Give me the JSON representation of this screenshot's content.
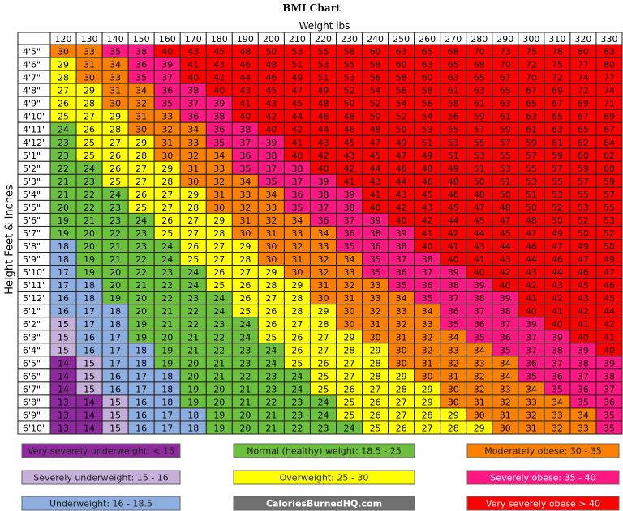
{
  "title": "BMI Chart",
  "x_label": "Weight lbs",
  "y_label": "Height Feet & Inches",
  "table": {
    "columns": [
      120,
      130,
      140,
      150,
      160,
      170,
      180,
      190,
      200,
      210,
      220,
      230,
      240,
      250,
      260,
      270,
      280,
      290,
      300,
      310,
      320,
      330
    ],
    "rows": [
      {
        "label": "4'5\"",
        "values": [
          30,
          33,
          35,
          38,
          40,
          43,
          45,
          48,
          50,
          53,
          55,
          58,
          60,
          63,
          65,
          68,
          70,
          73,
          75,
          78,
          80,
          83
        ]
      },
      {
        "label": "4'6\"",
        "values": [
          29,
          31,
          34,
          36,
          39,
          41,
          43,
          46,
          48,
          51,
          53,
          55,
          58,
          60,
          63,
          65,
          68,
          70,
          72,
          75,
          77,
          80
        ]
      },
      {
        "label": "4'7\"",
        "values": [
          28,
          30,
          33,
          35,
          37,
          40,
          42,
          44,
          46,
          49,
          51,
          53,
          56,
          58,
          60,
          63,
          65,
          67,
          70,
          72,
          74,
          77
        ]
      },
      {
        "label": "4'8\"",
        "values": [
          27,
          29,
          31,
          34,
          36,
          38,
          40,
          43,
          45,
          47,
          49,
          52,
          54,
          56,
          58,
          61,
          63,
          65,
          67,
          69,
          72,
          74
        ]
      },
      {
        "label": "4'9\"",
        "values": [
          26,
          28,
          30,
          32,
          35,
          37,
          39,
          41,
          43,
          45,
          48,
          50,
          52,
          54,
          56,
          58,
          61,
          63,
          65,
          67,
          69,
          71
        ]
      },
      {
        "label": "4'10\"",
        "values": [
          25,
          27,
          29,
          31,
          33,
          36,
          38,
          40,
          42,
          44,
          46,
          48,
          50,
          52,
          54,
          56,
          59,
          61,
          63,
          65,
          67,
          69
        ]
      },
      {
        "label": "4'11\"",
        "values": [
          24,
          26,
          28,
          30,
          32,
          34,
          36,
          38,
          40,
          42,
          44,
          46,
          48,
          50,
          53,
          55,
          57,
          59,
          61,
          63,
          65,
          67
        ]
      },
      {
        "label": "4'12\"",
        "values": [
          23,
          25,
          27,
          29,
          31,
          33,
          35,
          37,
          39,
          41,
          43,
          45,
          47,
          49,
          51,
          53,
          55,
          57,
          59,
          61,
          62,
          64
        ]
      },
      {
        "label": "5'1\"",
        "values": [
          23,
          25,
          26,
          28,
          30,
          32,
          34,
          36,
          38,
          40,
          42,
          43,
          45,
          47,
          49,
          51,
          53,
          55,
          57,
          59,
          60,
          62
        ]
      },
      {
        "label": "5'2\"",
        "values": [
          22,
          24,
          26,
          27,
          29,
          31,
          33,
          35,
          37,
          38,
          40,
          42,
          44,
          46,
          48,
          49,
          51,
          53,
          55,
          57,
          59,
          60
        ]
      },
      {
        "label": "5'3\"",
        "values": [
          21,
          23,
          25,
          27,
          28,
          30,
          32,
          34,
          35,
          37,
          39,
          41,
          43,
          44,
          46,
          48,
          50,
          51,
          53,
          55,
          57,
          59
        ]
      },
      {
        "label": "5'4\"",
        "values": [
          21,
          22,
          24,
          26,
          27,
          29,
          31,
          33,
          34,
          36,
          38,
          39,
          41,
          43,
          45,
          46,
          48,
          50,
          51,
          53,
          55,
          57
        ]
      },
      {
        "label": "5'5\"",
        "values": [
          20,
          22,
          23,
          25,
          27,
          28,
          30,
          32,
          33,
          35,
          37,
          38,
          40,
          42,
          43,
          45,
          47,
          48,
          50,
          52,
          53,
          55
        ]
      },
      {
        "label": "5'6\"",
        "values": [
          19,
          21,
          23,
          24,
          26,
          27,
          29,
          31,
          32,
          34,
          36,
          37,
          39,
          40,
          42,
          44,
          45,
          47,
          48,
          50,
          52,
          53
        ]
      },
      {
        "label": "5'7\"",
        "values": [
          19,
          20,
          22,
          23,
          25,
          27,
          28,
          30,
          31,
          33,
          34,
          36,
          38,
          39,
          41,
          42,
          44,
          45,
          47,
          49,
          50,
          52
        ]
      },
      {
        "label": "5'8\"",
        "values": [
          18,
          20,
          21,
          23,
          24,
          26,
          27,
          29,
          30,
          32,
          33,
          35,
          36,
          38,
          40,
          41,
          43,
          44,
          46,
          47,
          49,
          50
        ]
      },
      {
        "label": "5'9\"",
        "values": [
          18,
          19,
          21,
          22,
          24,
          25,
          27,
          28,
          30,
          31,
          32,
          34,
          35,
          37,
          38,
          40,
          41,
          43,
          44,
          46,
          47,
          49
        ]
      },
      {
        "label": "5'10\"",
        "values": [
          17,
          19,
          20,
          22,
          23,
          24,
          26,
          27,
          29,
          30,
          32,
          33,
          35,
          36,
          37,
          39,
          40,
          42,
          43,
          44,
          46,
          47
        ]
      },
      {
        "label": "5'11\"",
        "values": [
          17,
          18,
          20,
          21,
          22,
          24,
          25,
          26,
          28,
          29,
          31,
          32,
          33,
          35,
          36,
          38,
          39,
          40,
          42,
          43,
          45,
          46
        ]
      },
      {
        "label": "5'12\"",
        "values": [
          16,
          18,
          19,
          20,
          22,
          23,
          24,
          26,
          27,
          28,
          30,
          31,
          33,
          34,
          35,
          37,
          38,
          39,
          41,
          42,
          43,
          45
        ]
      },
      {
        "label": "6'1\"",
        "values": [
          16,
          17,
          18,
          20,
          21,
          22,
          24,
          25,
          26,
          28,
          29,
          30,
          32,
          33,
          34,
          36,
          37,
          38,
          40,
          41,
          42,
          44
        ]
      },
      {
        "label": "6'2\"",
        "values": [
          15,
          17,
          18,
          19,
          21,
          22,
          23,
          24,
          26,
          27,
          28,
          30,
          31,
          32,
          33,
          35,
          36,
          37,
          39,
          40,
          41,
          42
        ]
      },
      {
        "label": "6'3\"",
        "values": [
          15,
          16,
          17,
          19,
          20,
          21,
          22,
          24,
          25,
          26,
          27,
          29,
          30,
          31,
          32,
          34,
          35,
          36,
          37,
          39,
          40,
          41
        ]
      },
      {
        "label": "6'4\"",
        "values": [
          15,
          16,
          17,
          18,
          19,
          21,
          22,
          23,
          24,
          26,
          27,
          28,
          29,
          30,
          32,
          33,
          34,
          35,
          37,
          38,
          39,
          40
        ]
      },
      {
        "label": "6'5\"",
        "values": [
          14,
          15,
          17,
          18,
          19,
          20,
          21,
          23,
          24,
          25,
          26,
          27,
          28,
          30,
          31,
          32,
          33,
          34,
          36,
          37,
          38,
          39
        ]
      },
      {
        "label": "6'6\"",
        "values": [
          14,
          15,
          16,
          17,
          18,
          20,
          21,
          22,
          23,
          24,
          25,
          27,
          28,
          29,
          30,
          31,
          32,
          34,
          35,
          36,
          37,
          38
        ]
      },
      {
        "label": "6'7\"",
        "values": [
          14,
          15,
          16,
          17,
          18,
          19,
          20,
          21,
          23,
          24,
          25,
          26,
          27,
          28,
          29,
          30,
          32,
          33,
          34,
          35,
          36,
          37
        ]
      },
      {
        "label": "6'8\"",
        "values": [
          13,
          14,
          15,
          16,
          18,
          19,
          20,
          21,
          22,
          23,
          24,
          25,
          26,
          27,
          29,
          30,
          31,
          32,
          33,
          34,
          35,
          36
        ]
      },
      {
        "label": "6'9\"",
        "values": [
          13,
          14,
          15,
          16,
          17,
          18,
          19,
          20,
          21,
          23,
          24,
          25,
          26,
          27,
          28,
          29,
          30,
          31,
          32,
          33,
          34,
          35
        ]
      },
      {
        "label": "6'10\"",
        "values": [
          13,
          14,
          15,
          16,
          17,
          18,
          19,
          20,
          21,
          22,
          23,
          24,
          25,
          26,
          27,
          28,
          29,
          30,
          31,
          32,
          33,
          35
        ]
      }
    ]
  },
  "legend": [
    {
      "label": "Very severely underweight: < 15",
      "color": "#8e2a9e",
      "text_color": "#222",
      "upper": 15
    },
    {
      "label": "Severely underweight: 15 - 16",
      "color": "#c4b0d8",
      "text_color": "#222",
      "upper": 16
    },
    {
      "label": "Underweight: 16 - 18.5",
      "color": "#8eaee0",
      "text_color": "#222",
      "upper": 18.5
    },
    {
      "label": "Normal (healthy) weight: 18.5 - 25",
      "color": "#6dbf3e",
      "text_color": "#222",
      "upper": 25
    },
    {
      "label": "Overweight: 25 - 30",
      "color": "#ffff00",
      "text_color": "#222",
      "upper": 30
    },
    {
      "label": "Moderately obese: 30 - 35",
      "color": "#f98000",
      "text_color": "#222",
      "upper": 35
    },
    {
      "label": "Severely obese: 35 - 40",
      "color": "#ff1782",
      "text_color": "#fff",
      "upper": 40
    },
    {
      "label": "Very severely obese > 40",
      "color": "#ff0000",
      "text_color": "#fff"
    }
  ],
  "credit": {
    "label": "CaloriesBurnedHQ.com",
    "color": "#707070",
    "text_color": "#fff"
  }
}
